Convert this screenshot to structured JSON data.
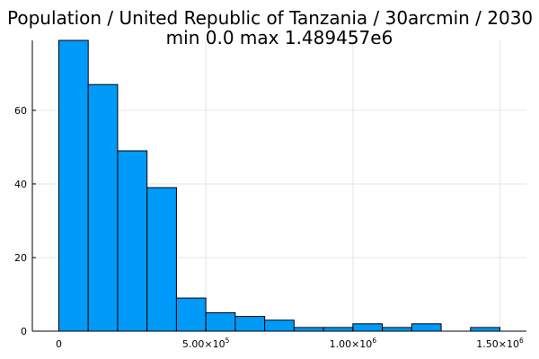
{
  "chart_data": {
    "type": "bar",
    "title": "Population / United Republic of Tanzania / 30arcmin / 2030",
    "subtitle": "min 0.0  max 1.489457e6",
    "bin_width": 100000,
    "bins": [
      {
        "start": 0,
        "end": 100000,
        "count": 79
      },
      {
        "start": 100000,
        "end": 200000,
        "count": 67
      },
      {
        "start": 200000,
        "end": 300000,
        "count": 49
      },
      {
        "start": 300000,
        "end": 400000,
        "count": 39
      },
      {
        "start": 400000,
        "end": 500000,
        "count": 9
      },
      {
        "start": 500000,
        "end": 600000,
        "count": 5
      },
      {
        "start": 600000,
        "end": 700000,
        "count": 4
      },
      {
        "start": 700000,
        "end": 800000,
        "count": 3
      },
      {
        "start": 800000,
        "end": 900000,
        "count": 1
      },
      {
        "start": 900000,
        "end": 1000000,
        "count": 1
      },
      {
        "start": 1000000,
        "end": 1100000,
        "count": 2
      },
      {
        "start": 1100000,
        "end": 1200000,
        "count": 1
      },
      {
        "start": 1200000,
        "end": 1300000,
        "count": 2
      },
      {
        "start": 1300000,
        "end": 1400000,
        "count": 0
      },
      {
        "start": 1400000,
        "end": 1500000,
        "count": 1
      }
    ],
    "xlim": [
      -90000,
      1590000
    ],
    "ylim": [
      0,
      79
    ],
    "x_ticks": [
      {
        "value": 0,
        "mantissa": "0",
        "exponent": ""
      },
      {
        "value": 500000,
        "mantissa": "5.00×10",
        "exponent": "5"
      },
      {
        "value": 1000000,
        "mantissa": "1.00×10",
        "exponent": "6"
      },
      {
        "value": 1500000,
        "mantissa": "1.50×10",
        "exponent": "6"
      }
    ],
    "y_ticks": [
      0,
      20,
      40,
      60
    ],
    "xlabel": "",
    "ylabel": "",
    "grid": true,
    "legend": "none",
    "bar_color": "#009af9",
    "edge_color": "#000000"
  }
}
